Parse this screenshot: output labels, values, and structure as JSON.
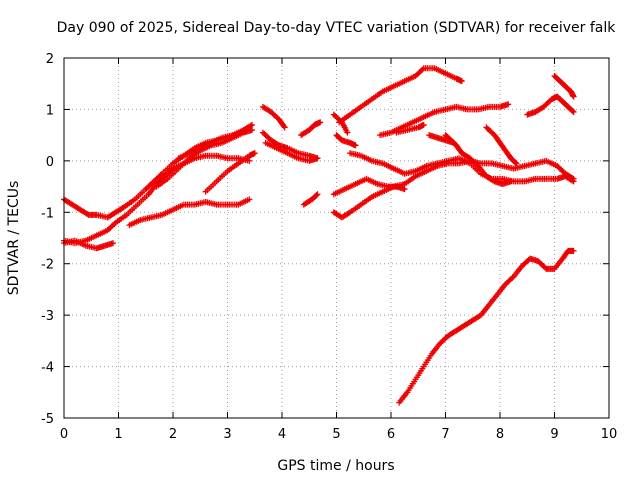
{
  "chart_data": {
    "type": "scatter",
    "title": "Day 090 of 2025, Sidereal Day-to-day VTEC variation (SDTVAR) for receiver falk",
    "xlabel": "GPS time / hours",
    "ylabel": "SDTVAR / TECUs",
    "xlim": [
      0,
      10
    ],
    "ylim": [
      -5,
      2
    ],
    "xticks": [
      0,
      1,
      2,
      3,
      4,
      5,
      6,
      7,
      8,
      9,
      10
    ],
    "yticks": [
      -5,
      -4,
      -3,
      -2,
      -1,
      0,
      1,
      2
    ],
    "grid": true,
    "marker": "plus",
    "color": "#ee0000",
    "series": [
      {
        "points": [
          [
            0.0,
            -0.75
          ],
          [
            0.15,
            -0.85
          ],
          [
            0.3,
            -0.95
          ],
          [
            0.45,
            -1.05
          ],
          [
            0.6,
            -1.05
          ],
          [
            0.8,
            -1.1
          ],
          [
            0.95,
            -1.0
          ],
          [
            1.1,
            -0.9
          ],
          [
            1.3,
            -0.75
          ],
          [
            1.5,
            -0.55
          ],
          [
            1.65,
            -0.4
          ],
          [
            1.8,
            -0.25
          ],
          [
            2.0,
            -0.05
          ],
          [
            2.2,
            0.1
          ],
          [
            2.4,
            0.25
          ],
          [
            2.6,
            0.35
          ],
          [
            2.8,
            0.4
          ],
          [
            3.0,
            0.45
          ],
          [
            3.2,
            0.55
          ],
          [
            3.4,
            0.65
          ]
        ]
      },
      {
        "points": [
          [
            0.0,
            -1.55
          ],
          [
            0.2,
            -1.6
          ],
          [
            0.4,
            -1.55
          ],
          [
            0.6,
            -1.45
          ],
          [
            0.8,
            -1.35
          ],
          [
            0.95,
            -1.2
          ],
          [
            1.15,
            -1.05
          ],
          [
            1.35,
            -0.85
          ],
          [
            1.55,
            -0.65
          ],
          [
            1.7,
            -0.45
          ],
          [
            1.85,
            -0.3
          ],
          [
            2.0,
            -0.15
          ],
          [
            2.2,
            -0.05
          ],
          [
            2.4,
            0.05
          ],
          [
            2.6,
            0.1
          ],
          [
            2.8,
            0.1
          ],
          [
            3.0,
            0.05
          ],
          [
            3.2,
            0.05
          ],
          [
            3.4,
            0.0
          ]
        ]
      },
      {
        "points": [
          [
            0.0,
            -1.6
          ],
          [
            0.2,
            -1.55
          ],
          [
            0.4,
            -1.65
          ],
          [
            0.6,
            -1.7
          ],
          [
            0.75,
            -1.65
          ],
          [
            0.9,
            -1.6
          ]
        ]
      },
      {
        "points": [
          [
            1.2,
            -1.25
          ],
          [
            1.4,
            -1.15
          ],
          [
            1.6,
            -1.1
          ],
          [
            1.8,
            -1.05
          ],
          [
            2.0,
            -0.95
          ],
          [
            2.2,
            -0.85
          ],
          [
            2.4,
            -0.85
          ],
          [
            2.6,
            -0.8
          ],
          [
            2.8,
            -0.85
          ],
          [
            3.0,
            -0.85
          ],
          [
            3.2,
            -0.85
          ],
          [
            3.4,
            -0.75
          ]
        ]
      },
      {
        "points": [
          [
            1.7,
            -0.5
          ],
          [
            1.9,
            -0.35
          ],
          [
            2.1,
            -0.15
          ],
          [
            2.3,
            0.05
          ],
          [
            2.5,
            0.2
          ],
          [
            2.7,
            0.3
          ],
          [
            2.9,
            0.35
          ],
          [
            3.1,
            0.45
          ],
          [
            3.3,
            0.55
          ],
          [
            3.45,
            0.6
          ]
        ]
      },
      {
        "points": [
          [
            2.6,
            -0.6
          ],
          [
            2.8,
            -0.4
          ],
          [
            3.0,
            -0.2
          ],
          [
            3.2,
            -0.05
          ],
          [
            3.4,
            0.1
          ],
          [
            3.5,
            0.15
          ]
        ]
      },
      {
        "points": [
          [
            2.1,
            0.05
          ],
          [
            2.3,
            0.15
          ],
          [
            2.5,
            0.25
          ],
          [
            2.7,
            0.35
          ],
          [
            2.9,
            0.45
          ],
          [
            3.1,
            0.5
          ],
          [
            3.3,
            0.6
          ],
          [
            3.45,
            0.7
          ]
        ]
      },
      {
        "points": [
          [
            3.65,
            1.05
          ],
          [
            3.8,
            0.95
          ],
          [
            3.95,
            0.8
          ],
          [
            4.05,
            0.65
          ]
        ]
      },
      {
        "points": [
          [
            3.65,
            0.55
          ],
          [
            3.8,
            0.4
          ],
          [
            3.95,
            0.3
          ],
          [
            4.1,
            0.25
          ],
          [
            4.3,
            0.15
          ],
          [
            4.5,
            0.1
          ],
          [
            4.65,
            0.05
          ]
        ]
      },
      {
        "points": [
          [
            3.7,
            0.35
          ],
          [
            3.9,
            0.25
          ],
          [
            4.1,
            0.15
          ],
          [
            4.3,
            0.05
          ],
          [
            4.5,
            0.0
          ],
          [
            4.65,
            0.05
          ]
        ]
      },
      {
        "points": [
          [
            4.35,
            0.5
          ],
          [
            4.5,
            0.6
          ],
          [
            4.6,
            0.7
          ],
          [
            4.7,
            0.75
          ]
        ]
      },
      {
        "points": [
          [
            4.4,
            -0.85
          ],
          [
            4.55,
            -0.75
          ],
          [
            4.65,
            -0.65
          ]
        ]
      },
      {
        "points": [
          [
            4.95,
            0.9
          ],
          [
            5.1,
            0.75
          ],
          [
            5.2,
            0.55
          ]
        ]
      },
      {
        "points": [
          [
            5.0,
            0.5
          ],
          [
            5.1,
            0.4
          ],
          [
            5.25,
            0.35
          ],
          [
            5.35,
            0.3
          ]
        ]
      },
      {
        "points": [
          [
            5.05,
            0.75
          ],
          [
            5.25,
            0.9
          ],
          [
            5.45,
            1.05
          ],
          [
            5.65,
            1.2
          ],
          [
            5.85,
            1.35
          ],
          [
            6.05,
            1.45
          ],
          [
            6.25,
            1.55
          ],
          [
            6.45,
            1.65
          ],
          [
            6.6,
            1.8
          ],
          [
            6.8,
            1.8
          ],
          [
            7.0,
            1.7
          ],
          [
            7.2,
            1.6
          ],
          [
            7.3,
            1.55
          ]
        ]
      },
      {
        "points": [
          [
            4.95,
            -1.0
          ],
          [
            5.1,
            -1.1
          ],
          [
            5.25,
            -1.0
          ],
          [
            5.45,
            -0.85
          ],
          [
            5.65,
            -0.7
          ],
          [
            5.85,
            -0.6
          ],
          [
            6.05,
            -0.5
          ],
          [
            6.25,
            -0.45
          ],
          [
            6.45,
            -0.3
          ],
          [
            6.65,
            -0.2
          ],
          [
            6.85,
            -0.1
          ],
          [
            7.05,
            -0.05
          ],
          [
            7.25,
            -0.05
          ],
          [
            7.45,
            0.0
          ],
          [
            7.65,
            -0.05
          ],
          [
            7.85,
            -0.05
          ],
          [
            8.05,
            -0.1
          ],
          [
            8.25,
            -0.15
          ],
          [
            8.45,
            -0.1
          ],
          [
            8.65,
            -0.05
          ],
          [
            8.85,
            0.0
          ],
          [
            9.05,
            -0.1
          ],
          [
            9.2,
            -0.25
          ],
          [
            9.35,
            -0.35
          ]
        ]
      },
      {
        "points": [
          [
            4.95,
            -0.65
          ],
          [
            5.15,
            -0.55
          ],
          [
            5.35,
            -0.45
          ],
          [
            5.55,
            -0.35
          ],
          [
            5.75,
            -0.45
          ],
          [
            5.95,
            -0.5
          ],
          [
            6.1,
            -0.5
          ],
          [
            6.25,
            -0.55
          ]
        ]
      },
      {
        "points": [
          [
            5.25,
            0.15
          ],
          [
            5.45,
            0.1
          ],
          [
            5.65,
            0.0
          ],
          [
            5.85,
            -0.05
          ],
          [
            6.05,
            -0.15
          ],
          [
            6.25,
            -0.25
          ],
          [
            6.45,
            -0.2
          ],
          [
            6.65,
            -0.1
          ],
          [
            6.85,
            -0.05
          ],
          [
            7.05,
            0.0
          ],
          [
            7.25,
            0.05
          ],
          [
            7.45,
            -0.05
          ],
          [
            7.65,
            -0.25
          ],
          [
            7.85,
            -0.35
          ],
          [
            8.05,
            -0.35
          ],
          [
            8.25,
            -0.4
          ],
          [
            8.45,
            -0.4
          ],
          [
            8.65,
            -0.35
          ],
          [
            8.85,
            -0.35
          ],
          [
            9.05,
            -0.35
          ],
          [
            9.2,
            -0.3
          ],
          [
            9.35,
            -0.4
          ]
        ]
      },
      {
        "points": [
          [
            5.8,
            0.5
          ],
          [
            6.0,
            0.55
          ],
          [
            6.2,
            0.65
          ],
          [
            6.4,
            0.75
          ],
          [
            6.6,
            0.85
          ],
          [
            6.8,
            0.95
          ],
          [
            7.0,
            1.0
          ],
          [
            7.2,
            1.05
          ],
          [
            7.4,
            1.0
          ],
          [
            7.6,
            1.0
          ],
          [
            7.8,
            1.05
          ],
          [
            8.0,
            1.05
          ],
          [
            8.15,
            1.1
          ]
        ]
      },
      {
        "points": [
          [
            6.1,
            0.55
          ],
          [
            6.3,
            0.6
          ],
          [
            6.5,
            0.65
          ],
          [
            6.6,
            0.7
          ]
        ]
      },
      {
        "points": [
          [
            6.7,
            0.5
          ],
          [
            6.85,
            0.45
          ],
          [
            7.0,
            0.4
          ],
          [
            7.15,
            0.35
          ]
        ]
      },
      {
        "points": [
          [
            7.0,
            0.5
          ],
          [
            7.1,
            0.4
          ],
          [
            7.2,
            0.3
          ],
          [
            7.3,
            0.15
          ],
          [
            7.45,
            0.05
          ],
          [
            7.6,
            -0.1
          ],
          [
            7.75,
            -0.3
          ],
          [
            7.9,
            -0.4
          ],
          [
            8.05,
            -0.45
          ],
          [
            8.2,
            -0.4
          ]
        ]
      },
      {
        "points": [
          [
            7.75,
            0.65
          ],
          [
            7.9,
            0.5
          ],
          [
            8.0,
            0.35
          ],
          [
            8.1,
            0.2
          ],
          [
            8.2,
            0.05
          ],
          [
            8.3,
            -0.05
          ]
        ]
      },
      {
        "points": [
          [
            6.15,
            -4.7
          ],
          [
            6.3,
            -4.5
          ],
          [
            6.45,
            -4.25
          ],
          [
            6.6,
            -4.0
          ],
          [
            6.75,
            -3.75
          ],
          [
            6.9,
            -3.55
          ],
          [
            7.05,
            -3.4
          ],
          [
            7.2,
            -3.3
          ],
          [
            7.35,
            -3.2
          ],
          [
            7.5,
            -3.1
          ],
          [
            7.65,
            -3.0
          ],
          [
            7.8,
            -2.8
          ],
          [
            7.95,
            -2.6
          ],
          [
            8.1,
            -2.4
          ],
          [
            8.25,
            -2.25
          ],
          [
            8.4,
            -2.05
          ],
          [
            8.55,
            -1.9
          ],
          [
            8.7,
            -1.95
          ],
          [
            8.85,
            -2.1
          ],
          [
            9.0,
            -2.1
          ],
          [
            9.15,
            -1.9
          ],
          [
            9.25,
            -1.75
          ],
          [
            9.35,
            -1.75
          ]
        ]
      },
      {
        "points": [
          [
            8.5,
            0.9
          ],
          [
            8.65,
            0.95
          ],
          [
            8.8,
            1.05
          ],
          [
            8.95,
            1.2
          ],
          [
            9.05,
            1.25
          ],
          [
            9.15,
            1.15
          ],
          [
            9.25,
            1.05
          ],
          [
            9.35,
            0.95
          ]
        ]
      },
      {
        "points": [
          [
            9.0,
            1.65
          ],
          [
            9.1,
            1.55
          ],
          [
            9.2,
            1.45
          ],
          [
            9.3,
            1.35
          ],
          [
            9.35,
            1.25
          ]
        ]
      }
    ]
  }
}
